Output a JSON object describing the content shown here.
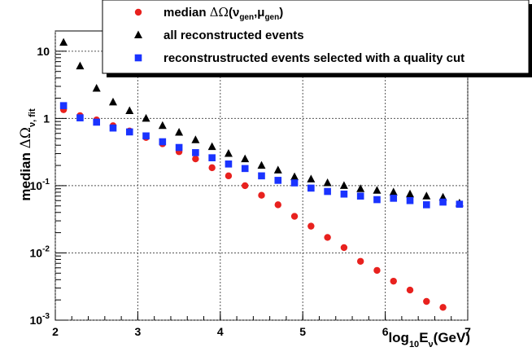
{
  "chart_data": {
    "type": "scatter",
    "x_scale": "linear",
    "y_scale": "log",
    "xlim": [
      2,
      7
    ],
    "ylim": [
      0.001,
      20
    ],
    "grid": true,
    "legend_placement": "top, overlapping plot",
    "x_ticks": [
      {
        "value": 2,
        "label": "2"
      },
      {
        "value": 3,
        "label": "3"
      },
      {
        "value": 4,
        "label": "4"
      },
      {
        "value": 5,
        "label": "5"
      },
      {
        "value": 6,
        "label": "6"
      },
      {
        "value": 7,
        "label": "7"
      }
    ],
    "y_ticks": [
      {
        "value": 0.001,
        "base": "10",
        "exp": "-3"
      },
      {
        "value": 0.01,
        "base": "10",
        "exp": "-2"
      },
      {
        "value": 0.1,
        "base": "10",
        "exp": "-1"
      },
      {
        "value": 1,
        "base": "1",
        "exp": ""
      },
      {
        "value": 10,
        "base": "10",
        "exp": ""
      }
    ],
    "xlabel": {
      "pre": "log",
      "sub1": "10",
      "mid": "E",
      "sub2": "ν",
      "post": "(GeV)"
    },
    "ylabel": {
      "pre": "median ",
      "sym": "ΔΩ",
      "sub": "ν, fit"
    },
    "series": [
      {
        "name": {
          "text": "median ",
          "sym": "ΔΩ",
          "open": "(ν",
          "sub1": "gen",
          "comma": ",μ",
          "sub2": "gen",
          "close": ")"
        },
        "marker": "circle",
        "color": "#e8211e",
        "x": [
          2.1,
          2.3,
          2.5,
          2.7,
          2.9,
          3.1,
          3.3,
          3.5,
          3.7,
          3.9,
          4.1,
          4.3,
          4.5,
          4.7,
          4.9,
          5.1,
          5.3,
          5.5,
          5.7,
          5.9,
          6.1,
          6.3,
          6.5,
          6.7
        ],
        "y": [
          1.35,
          1.1,
          0.95,
          0.78,
          0.65,
          0.52,
          0.42,
          0.32,
          0.25,
          0.185,
          0.14,
          0.1,
          0.072,
          0.052,
          0.035,
          0.025,
          0.017,
          0.012,
          0.0075,
          0.0055,
          0.0038,
          0.0028,
          0.0019,
          0.00155
        ]
      },
      {
        "name": {
          "text": "all reconstructed events"
        },
        "marker": "triangle",
        "color": "#000000",
        "x": [
          2.1,
          2.3,
          2.5,
          2.7,
          2.9,
          3.1,
          3.3,
          3.5,
          3.7,
          3.9,
          4.1,
          4.3,
          4.5,
          4.7,
          4.9,
          5.1,
          5.3,
          5.5,
          5.7,
          5.9,
          6.1,
          6.3,
          6.5,
          6.7,
          6.9
        ],
        "y": [
          13.5,
          6.0,
          2.8,
          1.75,
          1.3,
          1.0,
          0.78,
          0.62,
          0.48,
          0.38,
          0.3,
          0.25,
          0.2,
          0.17,
          0.135,
          0.125,
          0.11,
          0.1,
          0.09,
          0.085,
          0.08,
          0.075,
          0.07,
          0.067,
          0.055
        ]
      },
      {
        "name": {
          "text": "reconstrustructed events selected with a quality cut"
        },
        "marker": "square",
        "color": "#1a33ff",
        "x": [
          2.1,
          2.3,
          2.5,
          2.7,
          2.9,
          3.1,
          3.3,
          3.5,
          3.7,
          3.9,
          4.1,
          4.3,
          4.5,
          4.7,
          4.9,
          5.1,
          5.3,
          5.5,
          5.7,
          5.9,
          6.1,
          6.3,
          6.5,
          6.7,
          6.9
        ],
        "y": [
          1.55,
          1.02,
          0.88,
          0.72,
          0.63,
          0.55,
          0.45,
          0.37,
          0.31,
          0.26,
          0.21,
          0.18,
          0.14,
          0.12,
          0.11,
          0.092,
          0.082,
          0.075,
          0.07,
          0.062,
          0.065,
          0.06,
          0.052,
          0.057,
          0.053
        ]
      }
    ]
  }
}
